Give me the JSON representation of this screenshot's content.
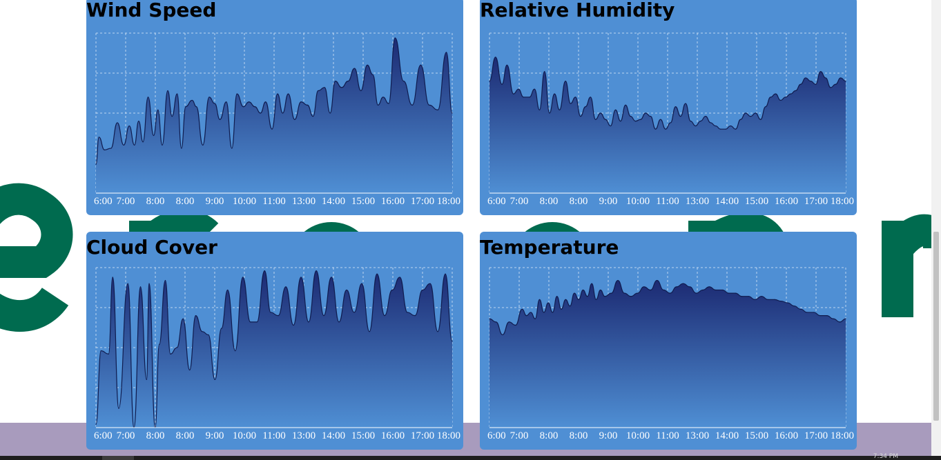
{
  "colors": {
    "panel": "#4f8fd4",
    "area_top": "#1c2a72",
    "area_bottom": "#4f8fd4",
    "line": "#101c4f",
    "grid": "#d8e6f6",
    "logo": "#006b4f",
    "band": "#a89bbd"
  },
  "taskbar": {
    "clock": "7:34 PM"
  },
  "chart_data": [
    {
      "type": "area",
      "title": "Wind Speed",
      "x_tick_labels": [
        "6:00",
        "7:00",
        "8:00",
        "8:00",
        "9:00",
        "10:00",
        "11:00",
        "13:00",
        "14:00",
        "15:00",
        "16:00",
        "17:00",
        "18:00"
      ],
      "ylim": [
        0,
        100
      ],
      "grid": true,
      "values": [
        18,
        35,
        27,
        28,
        44,
        30,
        42,
        30,
        45,
        32,
        60,
        36,
        52,
        30,
        64,
        48,
        62,
        28,
        54,
        58,
        54,
        30,
        60,
        56,
        46,
        57,
        28,
        62,
        54,
        57,
        54,
        50,
        57,
        40,
        62,
        50,
        62,
        46,
        57,
        55,
        48,
        64,
        66,
        50,
        70,
        66,
        70,
        78,
        64,
        80,
        74,
        55,
        60,
        56,
        97,
        70,
        55,
        80,
        55,
        52,
        88,
        50
      ],
      "x": [
        0,
        0.007,
        0.02,
        0.035,
        0.05,
        0.065,
        0.078,
        0.09,
        0.1,
        0.11,
        0.122,
        0.135,
        0.145,
        0.155,
        0.168,
        0.178,
        0.19,
        0.2,
        0.21,
        0.225,
        0.235,
        0.25,
        0.265,
        0.278,
        0.29,
        0.305,
        0.318,
        0.33,
        0.345,
        0.358,
        0.372,
        0.385,
        0.397,
        0.412,
        0.425,
        0.437,
        0.45,
        0.465,
        0.48,
        0.495,
        0.508,
        0.52,
        0.535,
        0.548,
        0.56,
        0.575,
        0.59,
        0.605,
        0.62,
        0.635,
        0.648,
        0.66,
        0.672,
        0.685,
        0.7,
        0.72,
        0.74,
        0.76,
        0.78,
        0.8,
        0.82,
        1
      ]
    },
    {
      "type": "area",
      "title": "Relative Humidity",
      "x_tick_labels": [
        "6:00",
        "7:00",
        "8:00",
        "8:00",
        "9:00",
        "10:00",
        "11:00",
        "13:00",
        "14:00",
        "15:00",
        "16:00",
        "17:00",
        "18:00"
      ],
      "ylim": [
        0,
        100
      ],
      "grid": true,
      "values": [
        70,
        85,
        68,
        80,
        62,
        65,
        60,
        60,
        65,
        52,
        76,
        50,
        62,
        52,
        70,
        56,
        60,
        48,
        54,
        60,
        46,
        50,
        46,
        42,
        52,
        45,
        55,
        48,
        45,
        46,
        50,
        48,
        40,
        46,
        40,
        44,
        54,
        48,
        56,
        45,
        42,
        45,
        48,
        44,
        42,
        40,
        40,
        42,
        40,
        46,
        50,
        48,
        50,
        46,
        54,
        60,
        62,
        58,
        60,
        62,
        64,
        68,
        72,
        70,
        68,
        76,
        72,
        66,
        68,
        72,
        70
      ],
      "x": [
        0,
        0.012,
        0.025,
        0.035,
        0.048,
        0.058,
        0.068,
        0.08,
        0.09,
        0.1,
        0.11,
        0.12,
        0.13,
        0.14,
        0.152,
        0.162,
        0.172,
        0.182,
        0.192,
        0.202,
        0.212,
        0.222,
        0.232,
        0.242,
        0.252,
        0.262,
        0.272,
        0.282,
        0.292,
        0.302,
        0.312,
        0.322,
        0.332,
        0.342,
        0.352,
        0.362,
        0.372,
        0.382,
        0.392,
        0.402,
        0.412,
        0.422,
        0.432,
        0.442,
        0.452,
        0.462,
        0.472,
        0.482,
        0.492,
        0.502,
        0.512,
        0.522,
        0.532,
        0.542,
        0.552,
        0.562,
        0.572,
        0.582,
        0.592,
        0.602,
        0.612,
        0.622,
        0.632,
        0.642,
        0.652,
        0.662,
        0.672,
        0.682,
        0.692,
        0.702,
        1
      ]
    },
    {
      "type": "area",
      "title": "Cloud Cover",
      "x_tick_labels": [
        "6:00",
        "7:00",
        "8:00",
        "8:00",
        "9:00",
        "10:00",
        "11:00",
        "13:00",
        "14:00",
        "15:00",
        "16:00",
        "17:00",
        "18:00"
      ],
      "ylim": [
        0,
        100
      ],
      "grid": true,
      "values": [
        2,
        48,
        46,
        94,
        12,
        90,
        0,
        88,
        30,
        90,
        0,
        52,
        92,
        46,
        50,
        68,
        36,
        70,
        60,
        58,
        30,
        62,
        86,
        48,
        94,
        66,
        66,
        98,
        72,
        70,
        88,
        64,
        94,
        66,
        98,
        70,
        94,
        66,
        86,
        72,
        90,
        60,
        96,
        70,
        86,
        94,
        72,
        70,
        86,
        90,
        60,
        96,
        54
      ],
      "x": [
        0,
        0.01,
        0.025,
        0.033,
        0.045,
        0.063,
        0.075,
        0.088,
        0.1,
        0.105,
        0.117,
        0.125,
        0.137,
        0.147,
        0.16,
        0.172,
        0.185,
        0.197,
        0.21,
        0.222,
        0.235,
        0.248,
        0.26,
        0.275,
        0.29,
        0.305,
        0.318,
        0.333,
        0.345,
        0.36,
        0.375,
        0.39,
        0.405,
        0.42,
        0.435,
        0.45,
        0.465,
        0.48,
        0.495,
        0.51,
        0.525,
        0.54,
        0.555,
        0.57,
        0.585,
        0.6,
        0.615,
        0.63,
        0.645,
        0.66,
        0.675,
        0.69,
        1
      ]
    },
    {
      "type": "area",
      "title": "Temperature",
      "x_tick_labels": [
        "6:00",
        "7:00",
        "8:00",
        "8:00",
        "9:00",
        "10:00",
        "11:00",
        "13:00",
        "14:00",
        "15:00",
        "16:00",
        "17:00",
        "18:00"
      ],
      "ylim": [
        0,
        100
      ],
      "grid": true,
      "values": [
        68,
        66,
        58,
        66,
        64,
        74,
        70,
        72,
        68,
        80,
        72,
        78,
        72,
        82,
        74,
        80,
        76,
        84,
        80,
        86,
        82,
        90,
        80,
        86,
        82,
        84,
        92,
        84,
        82,
        84,
        88,
        86,
        92,
        86,
        84,
        88,
        90,
        88,
        84,
        86,
        88,
        86,
        86,
        84,
        84,
        82,
        82,
        80,
        82,
        80,
        80,
        79,
        78,
        76,
        74,
        72,
        72,
        70,
        70,
        68,
        66,
        68
      ],
      "x": [
        0,
        0.015,
        0.03,
        0.045,
        0.06,
        0.075,
        0.085,
        0.095,
        0.105,
        0.115,
        0.125,
        0.135,
        0.145,
        0.155,
        0.165,
        0.175,
        0.185,
        0.195,
        0.205,
        0.215,
        0.225,
        0.235,
        0.245,
        0.255,
        0.265,
        0.28,
        0.295,
        0.31,
        0.325,
        0.34,
        0.355,
        0.37,
        0.385,
        0.4,
        0.415,
        0.43,
        0.445,
        0.46,
        0.475,
        0.49,
        0.505,
        0.52,
        0.535,
        0.55,
        0.565,
        0.58,
        0.595,
        0.61,
        0.625,
        0.64,
        0.655,
        0.67,
        0.685,
        0.7,
        0.715,
        0.73,
        0.745,
        0.76,
        0.775,
        0.79,
        0.805,
        1
      ]
    }
  ]
}
